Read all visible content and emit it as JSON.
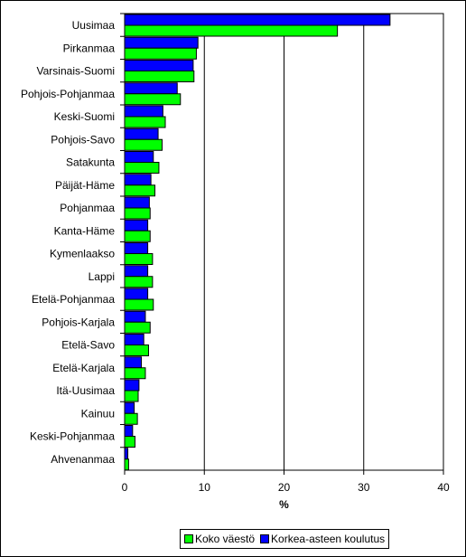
{
  "chart_data": {
    "type": "bar",
    "orientation": "horizontal",
    "categories": [
      "Uusimaa",
      "Pirkanmaa",
      "Varsinais-Suomi",
      "Pohjois-Pohjanmaa",
      "Keski-Suomi",
      "Pohjois-Savo",
      "Satakunta",
      "Päijät-Häme",
      "Pohjanmaa",
      "Kanta-Häme",
      "Kymenlaakso",
      "Lappi",
      "Etelä-Pohjanmaa",
      "Pohjois-Karjala",
      "Etelä-Savo",
      "Etelä-Karjala",
      "Itä-Uusimaa",
      "Kainuu",
      "Keski-Pohjanmaa",
      "Ahvenanmaa"
    ],
    "series": [
      {
        "name": "Korkea-asteen koulutus",
        "color": "#0000ff",
        "values": [
          33.3,
          9.2,
          8.6,
          6.6,
          4.8,
          4.2,
          3.6,
          3.3,
          3.1,
          2.9,
          2.9,
          2.9,
          2.9,
          2.6,
          2.4,
          2.1,
          1.8,
          1.2,
          1.0,
          0.4
        ]
      },
      {
        "name": "Koko väestö",
        "color": "#00ff00",
        "values": [
          26.7,
          9.0,
          8.7,
          7.0,
          5.1,
          4.7,
          4.3,
          3.8,
          3.2,
          3.2,
          3.5,
          3.5,
          3.6,
          3.2,
          3.0,
          2.6,
          1.7,
          1.6,
          1.3,
          0.5
        ]
      }
    ],
    "xlabel": "%",
    "xlim": [
      0,
      40
    ],
    "xticks": [
      "0",
      "10",
      "20",
      "30",
      "40"
    ],
    "grid": true,
    "legend_position": "bottom"
  },
  "legend": {
    "items": [
      {
        "label": "Koko väestö",
        "color": "#00ff00"
      },
      {
        "label": "Korkea-asteen koulutus",
        "color": "#0000ff"
      }
    ]
  }
}
